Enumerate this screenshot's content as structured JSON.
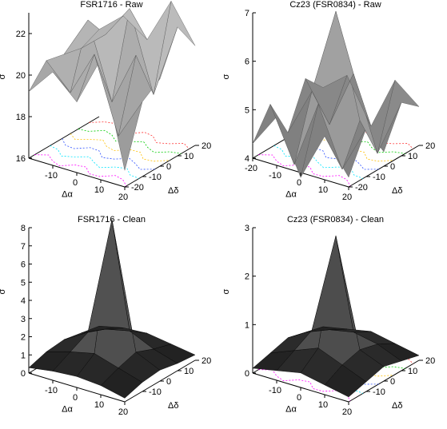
{
  "chart_data": [
    {
      "type": "surface3d",
      "title": "FSR1716 - Raw",
      "xlabel": "Δα",
      "ylabel": "Δδ",
      "zlabel": "σ",
      "xlim": [
        -20,
        20
      ],
      "ylim": [
        -20,
        20
      ],
      "zlim": [
        16,
        23
      ],
      "xticks": [
        "-10",
        "0",
        "10",
        "20"
      ],
      "yticks": [
        "-20",
        "-10",
        "0",
        "10",
        "20"
      ],
      "zticks": [
        "16",
        "18",
        "20",
        "22"
      ],
      "x": [
        -20,
        -10,
        0,
        10,
        20
      ],
      "y": [
        -20,
        -10,
        0,
        10,
        20
      ],
      "z": [
        [
          19.2,
          20.5,
          19.4,
          21.8,
          16.8
        ],
        [
          20.2,
          19.0,
          21.2,
          17.6,
          19.6
        ],
        [
          20.0,
          22.0,
          18.4,
          21.0,
          20.2
        ],
        [
          19.8,
          20.8,
          22.4,
          18.6,
          22.2
        ],
        [
          20.2,
          21.2,
          20.4,
          22.6,
          20.8
        ]
      ],
      "contours": true
    },
    {
      "type": "surface3d",
      "title": "Cz23 (FSR0834) - Raw",
      "xlabel": "Δα",
      "ylabel": "Δδ",
      "zlabel": "σ",
      "xlim": [
        -20,
        20
      ],
      "ylim": [
        -20,
        20
      ],
      "zlim": [
        4,
        7
      ],
      "xticks": [
        "-20",
        "-10",
        "0",
        "10",
        "20"
      ],
      "yticks": [
        "-20",
        "-10",
        "0",
        "10",
        "20"
      ],
      "zticks": [
        "4",
        "5",
        "6",
        "7"
      ],
      "x": [
        -20,
        -10,
        0,
        10,
        20
      ],
      "y": [
        -20,
        -10,
        0,
        10,
        20
      ],
      "z": [
        [
          4.3,
          5.0,
          3.9,
          4.9,
          4.2
        ],
        [
          4.9,
          3.8,
          5.2,
          4.0,
          5.0
        ],
        [
          4.1,
          5.1,
          6.9,
          4.8,
          4.3
        ],
        [
          5.0,
          4.2,
          5.4,
          3.9,
          5.1
        ],
        [
          4.6,
          5.0,
          4.1,
          5.2,
          4.8
        ]
      ],
      "contours": true
    },
    {
      "type": "surface3d",
      "title": "FSR1716 - Clean",
      "xlabel": "Δα",
      "ylabel": "Δδ",
      "zlabel": "σ",
      "xlim": [
        -20,
        20
      ],
      "ylim": [
        -20,
        20
      ],
      "zlim": [
        0,
        8
      ],
      "xticks": [
        "-10",
        "0",
        "10",
        "20"
      ],
      "yticks": [
        "-10",
        "0",
        "10",
        "20"
      ],
      "zticks": [
        "0",
        "1",
        "2",
        "3",
        "4",
        "5",
        "6",
        "7",
        "8"
      ],
      "x": [
        -20,
        -10,
        0,
        10,
        20
      ],
      "y": [
        -20,
        -10,
        0,
        10,
        20
      ],
      "z": [
        [
          0.3,
          0.5,
          0.6,
          0.5,
          0.2
        ],
        [
          0.6,
          1.0,
          1.3,
          0.9,
          0.5
        ],
        [
          0.7,
          1.5,
          8.1,
          1.2,
          0.6
        ],
        [
          0.5,
          1.1,
          1.4,
          0.8,
          0.4
        ],
        [
          0.3,
          0.6,
          0.7,
          0.5,
          0.3
        ]
      ],
      "contours": false
    },
    {
      "type": "surface3d",
      "title": "Cz23 (FSR0834) - Clean",
      "xlabel": "Δα",
      "ylabel": "Δδ",
      "zlabel": "σ",
      "xlim": [
        -20,
        20
      ],
      "ylim": [
        -20,
        20
      ],
      "zlim": [
        0,
        3
      ],
      "xticks": [
        "-10",
        "0",
        "10",
        "20"
      ],
      "yticks": [
        "-10",
        "0",
        "10",
        "20"
      ],
      "zticks": [
        "0",
        "1",
        "2",
        "3"
      ],
      "x": [
        -20,
        -10,
        0,
        10,
        20
      ],
      "y": [
        -20,
        -10,
        0,
        10,
        20
      ],
      "z": [
        [
          0.1,
          0.2,
          0.3,
          0.2,
          0.1
        ],
        [
          0.2,
          0.4,
          0.6,
          0.4,
          0.2
        ],
        [
          0.3,
          0.6,
          2.7,
          0.5,
          0.3
        ],
        [
          0.2,
          0.4,
          0.5,
          0.4,
          0.2
        ],
        [
          0.1,
          0.2,
          0.3,
          0.2,
          0.1
        ]
      ],
      "contours": true
    }
  ]
}
